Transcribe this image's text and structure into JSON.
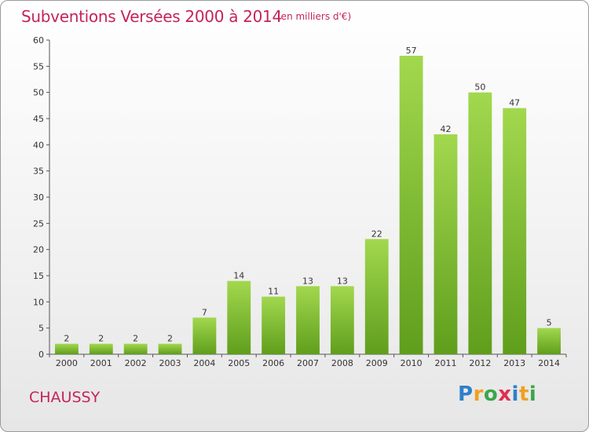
{
  "chart_data": {
    "type": "bar",
    "title": "Subventions Versées 2000 à 2014",
    "subtitle": "(en milliers d'€)",
    "categories": [
      "2000",
      "2001",
      "2002",
      "2003",
      "2004",
      "2005",
      "2006",
      "2007",
      "2008",
      "2009",
      "2010",
      "2011",
      "2012",
      "2013",
      "2014"
    ],
    "values": [
      2,
      2,
      2,
      2,
      7,
      14,
      11,
      13,
      13,
      22,
      57,
      42,
      50,
      47,
      5
    ],
    "ylim": [
      0,
      60
    ],
    "yticks": [
      0,
      5,
      10,
      15,
      20,
      25,
      30,
      35,
      40,
      45,
      50,
      55,
      60
    ],
    "xlabel": "",
    "ylabel": "",
    "grid": false,
    "bar_color": "#7cc030",
    "bar_color_light": "#a2d84e",
    "bar_color_dark": "#5f9e1c"
  },
  "town": "CHAUSSY",
  "logo": {
    "letters": [
      "P",
      "r",
      "o",
      "x",
      "i",
      "t",
      "i"
    ],
    "colors": [
      "#2f7fc9",
      "#f0a020",
      "#3aa64a",
      "#e03050",
      "#2f7fc9",
      "#f0a020",
      "#3aa64a"
    ]
  },
  "colors": {
    "accent": "#c4245b"
  }
}
